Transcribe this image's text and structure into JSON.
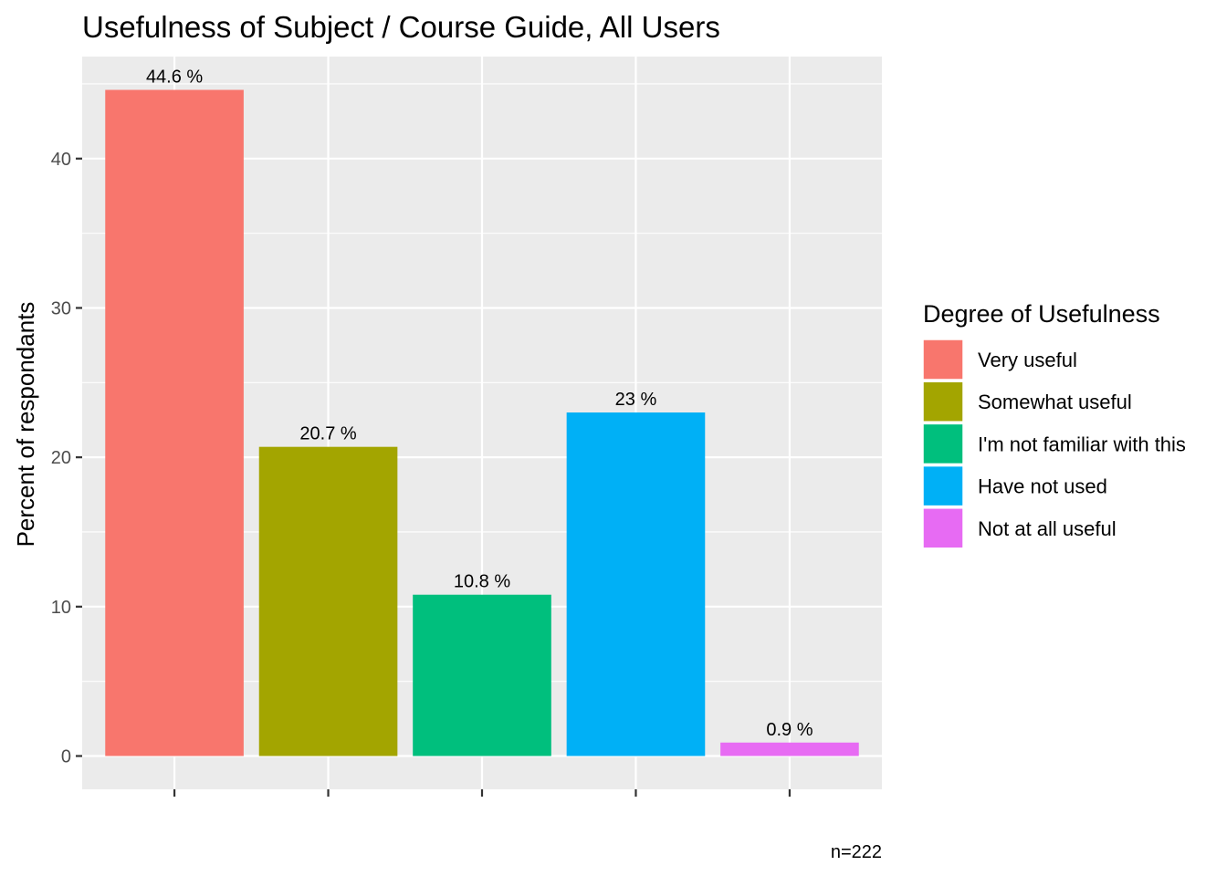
{
  "chart_data": {
    "type": "bar",
    "title": "Usefulness of Subject / Course Guide, All Users",
    "xlabel": "",
    "ylabel": "Percent of respondants",
    "caption": "n=222",
    "categories": [
      "Very useful",
      "Somewhat useful",
      "I'm not familiar with this",
      "Have not used",
      "Not at all useful"
    ],
    "values": [
      44.6,
      20.7,
      10.8,
      23,
      0.9
    ],
    "data_labels": [
      "44.6 %",
      "20.7 %",
      "10.8 %",
      "23 %",
      "0.9 %"
    ],
    "colors": [
      "#F8766D",
      "#A3A500",
      "#00BF7D",
      "#00B0F6",
      "#E76BF3"
    ],
    "ylim": [
      -2.23,
      46.83
    ],
    "yticks": [
      0,
      10,
      20,
      30,
      40
    ],
    "x_tick_labels_visible": false,
    "grid": true,
    "panel_background": "#EBEBEB",
    "legend": {
      "title": "Degree of Usefulness",
      "placement": "right",
      "entries": [
        "Very useful",
        "Somewhat useful",
        "I'm not familiar with this",
        "Have not used",
        "Not at all useful"
      ]
    }
  }
}
